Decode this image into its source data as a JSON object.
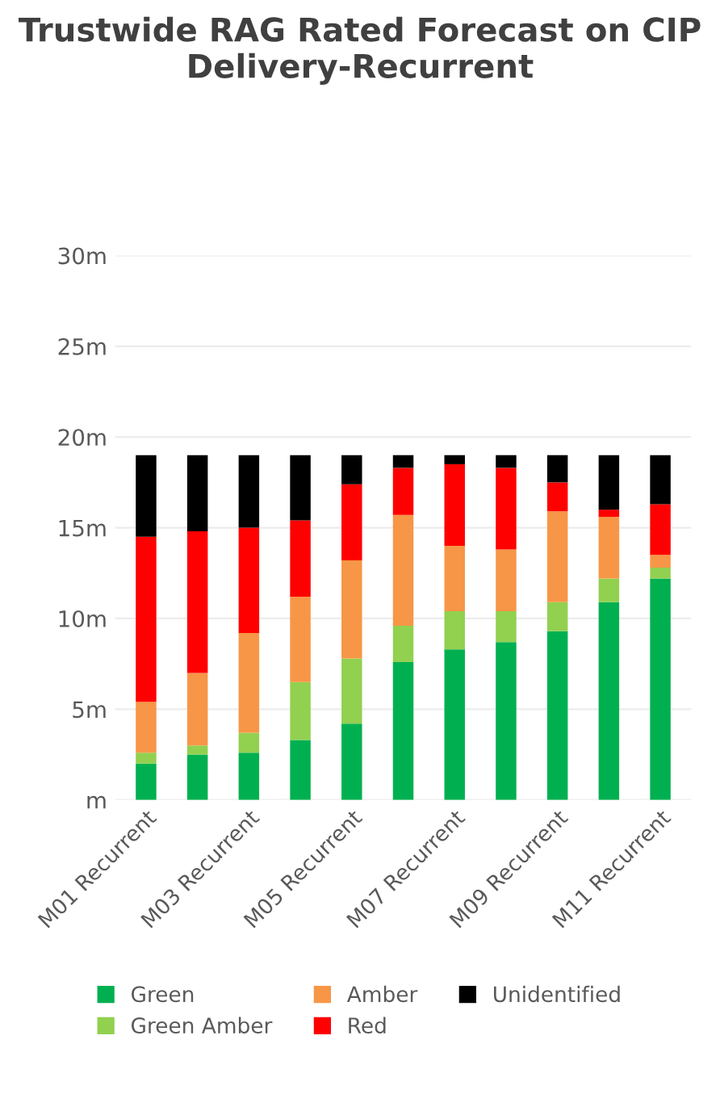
{
  "chart_data": {
    "type": "bar",
    "stacked": true,
    "title": "Trustwide RAG Rated Forecast on CIP Delivery-Recurrent",
    "categories": [
      "M01 Recurrent",
      null,
      "M03 Recurrent",
      null,
      "M05 Recurrent",
      null,
      "M07 Recurrent",
      null,
      "M09 Recurrent",
      null,
      "M11 Recurrent"
    ],
    "series": [
      {
        "name": "Green",
        "color": "#00b050",
        "values": [
          2.0,
          2.5,
          2.6,
          3.3,
          4.2,
          7.6,
          8.3,
          8.7,
          9.3,
          10.9,
          12.2
        ]
      },
      {
        "name": "Green Amber",
        "color": "#92d050",
        "values": [
          0.6,
          0.5,
          1.1,
          3.2,
          3.6,
          2.0,
          2.1,
          1.7,
          1.6,
          1.3,
          0.6
        ]
      },
      {
        "name": "Amber",
        "color": "#f79646",
        "values": [
          2.8,
          4.0,
          5.5,
          4.7,
          5.4,
          6.1,
          3.6,
          3.4,
          5.0,
          3.4,
          0.7
        ]
      },
      {
        "name": "Red",
        "color": "#ff0000",
        "values": [
          9.1,
          7.8,
          5.8,
          4.2,
          4.2,
          2.6,
          4.5,
          4.5,
          1.6,
          0.4,
          2.8
        ]
      },
      {
        "name": "Unidentified",
        "color": "#000000",
        "values": [
          4.5,
          4.2,
          4.0,
          3.6,
          1.6,
          0.7,
          0.5,
          0.7,
          1.5,
          3.0,
          2.7
        ]
      }
    ],
    "ylim": [
      0,
      30
    ],
    "yticks": [
      {
        "value": 0,
        "label": "m"
      },
      {
        "value": 5,
        "label": "5m"
      },
      {
        "value": 10,
        "label": "10m"
      },
      {
        "value": 15,
        "label": "15m"
      },
      {
        "value": 20,
        "label": "20m"
      },
      {
        "value": 25,
        "label": "25m"
      },
      {
        "value": 30,
        "label": "30m"
      }
    ],
    "grid": "y",
    "legend": "bottom"
  }
}
